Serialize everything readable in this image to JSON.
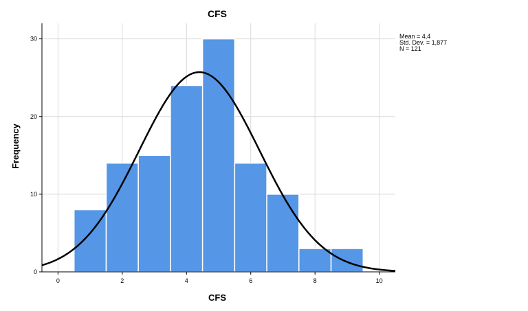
{
  "chart_data": {
    "type": "bar",
    "title": "CFS",
    "xlabel": "CFS",
    "ylabel": "Frequency",
    "bins": [
      {
        "from": 0.5,
        "to": 1.5,
        "value": 8
      },
      {
        "from": 1.5,
        "to": 2.5,
        "value": 14
      },
      {
        "from": 2.5,
        "to": 3.5,
        "value": 15
      },
      {
        "from": 3.5,
        "to": 4.5,
        "value": 24
      },
      {
        "from": 4.5,
        "to": 5.5,
        "value": 30
      },
      {
        "from": 5.5,
        "to": 6.5,
        "value": 14
      },
      {
        "from": 6.5,
        "to": 7.5,
        "value": 10
      },
      {
        "from": 7.5,
        "to": 8.5,
        "value": 3
      },
      {
        "from": 8.5,
        "to": 9.5,
        "value": 3
      }
    ],
    "xlim": [
      -0.5,
      10.5
    ],
    "ylim": [
      0,
      32
    ],
    "x_ticks": [
      "0",
      "2",
      "4",
      "6",
      "8",
      "10"
    ],
    "y_ticks": [
      "0",
      "10",
      "20",
      "30"
    ],
    "grid": true,
    "normal_curve": {
      "mean": 4.4,
      "std": 1.877,
      "n": 121,
      "bin_width": 1
    },
    "bar_color": "#5596e6",
    "curve_color": "#000000",
    "stats_lines": [
      "Mean = 4,4",
      "Std. Dev. = 1,877",
      "N = 121"
    ]
  }
}
